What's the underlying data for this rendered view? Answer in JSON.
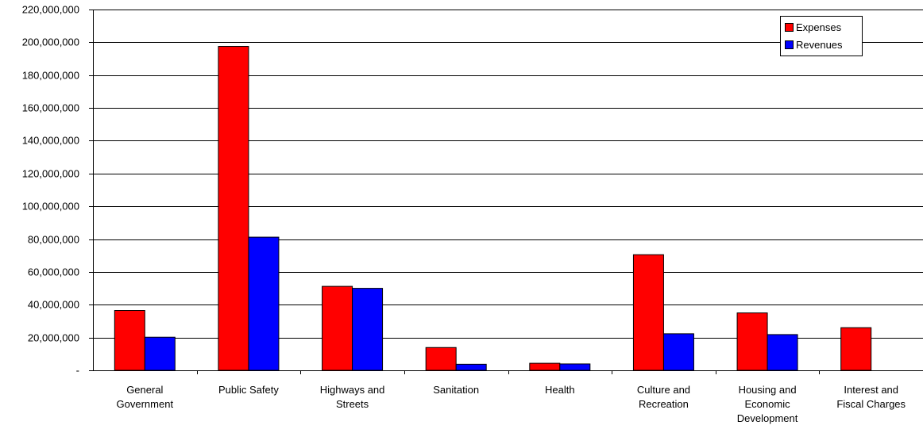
{
  "chart_data": {
    "type": "bar",
    "title": "",
    "xlabel": "",
    "ylabel": "",
    "ylim": [
      0,
      220000000
    ],
    "ytick_step": 20000000,
    "yticks": [
      "-",
      "20,000,000",
      "40,000,000",
      "60,000,000",
      "80,000,000",
      "100,000,000",
      "120,000,000",
      "140,000,000",
      "160,000,000",
      "180,000,000",
      "200,000,000",
      "220,000,000"
    ],
    "grid": true,
    "legend_position": "top-right",
    "categories": [
      [
        "General",
        "Government"
      ],
      [
        "Public Safety"
      ],
      [
        "Highways and",
        "Streets"
      ],
      [
        "Sanitation"
      ],
      [
        "Health"
      ],
      [
        "Culture and",
        "Recreation"
      ],
      [
        "Housing and",
        "Economic",
        "Development"
      ],
      [
        "Interest and",
        "Fiscal Charges"
      ]
    ],
    "series": [
      {
        "name": "Expenses",
        "color": "#ff0000",
        "values": [
          36500000,
          197500000,
          51200000,
          13900000,
          4300000,
          70500000,
          35000000,
          26000000
        ]
      },
      {
        "name": "Revenues",
        "color": "#0000ff",
        "values": [
          20200000,
          81200000,
          50000000,
          3700000,
          3900000,
          22300000,
          21800000,
          0
        ]
      }
    ]
  }
}
